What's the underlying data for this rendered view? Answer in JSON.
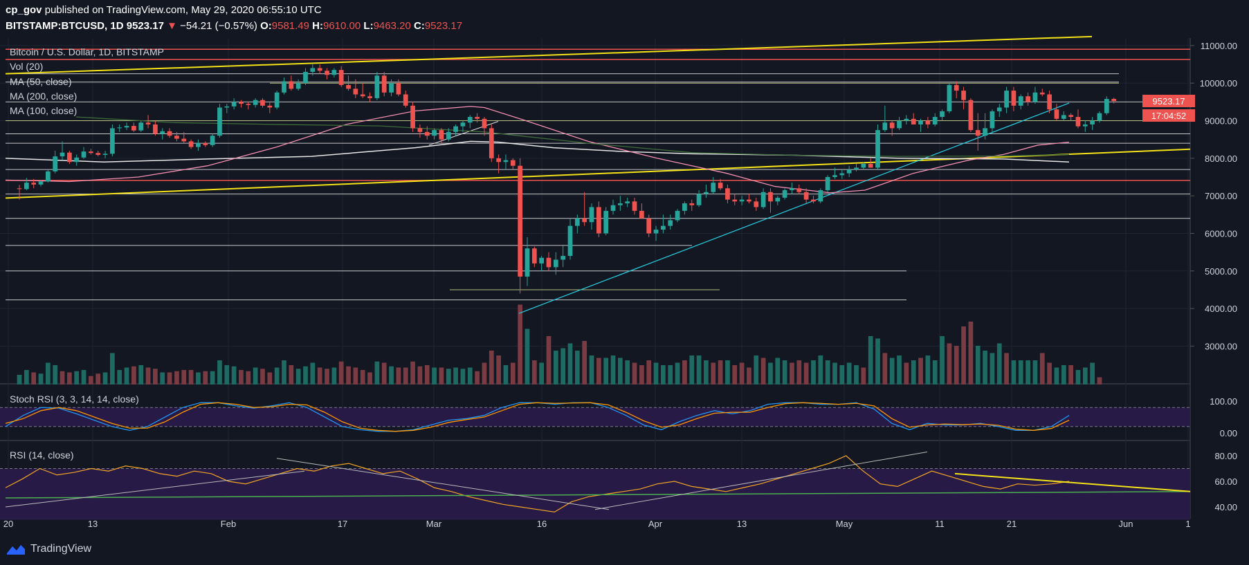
{
  "header": {
    "publisher": "cp_gov",
    "published_text": "published on TradingView.com, May 29, 2020 06:55:10 UTC",
    "symbol": "BITSTAMP:BTCUSD, 1D",
    "last": "9523.17",
    "change_arrow": "▼",
    "change": "−54.21 (−0.57%)",
    "o_label": "O:",
    "o": "9581.49",
    "h_label": "H:",
    "h": "9610.00",
    "l_label": "L:",
    "l": "9463.20",
    "c_label": "C:",
    "c": "9523.17"
  },
  "overlays": {
    "title": "Bitcoin / U.S. Dollar, 1D, BITSTAMP",
    "vol": "Vol (20)",
    "ma50": "MA (50, close)",
    "ma200": "MA (200, close)",
    "ma100": "MA (100, close)",
    "stoch": "Stoch RSI (3, 3, 14, 14, close)",
    "rsi": "RSI (14, close)"
  },
  "price_tags": {
    "last": "9523.17",
    "countdown": "17:04:52"
  },
  "footer": {
    "brand": "TradingView"
  },
  "colors": {
    "up": "#26a69a",
    "down": "#ef5350",
    "yellow": "#f5e31a",
    "background": "#131722",
    "accent": "#2962ff"
  },
  "chart_data": {
    "type": "candlestick",
    "x_ticks": [
      "20",
      "13",
      "Feb",
      "17",
      "Mar",
      "16",
      "Apr",
      "13",
      "May",
      "11",
      "21",
      "Jun",
      "1"
    ],
    "price_axis": {
      "ticks": [
        "11000.00",
        "10000.00",
        "9000.00",
        "8000.00",
        "7000.00",
        "6000.00",
        "5000.00",
        "4000.00",
        "3000.00"
      ]
    },
    "stoch_axis": {
      "ticks": [
        "100.00",
        "0.00"
      ]
    },
    "rsi_axis": {
      "ticks": [
        "80.00",
        "60.00",
        "40.00"
      ]
    },
    "ohlc": [
      [
        7200,
        7290,
        6900,
        7180
      ],
      [
        7180,
        7480,
        7150,
        7350
      ],
      [
        7350,
        7450,
        7200,
        7300
      ],
      [
        7300,
        7420,
        7250,
        7380
      ],
      [
        7380,
        7700,
        7350,
        7650
      ],
      [
        7650,
        8200,
        7600,
        8050
      ],
      [
        8050,
        8450,
        7950,
        8150
      ],
      [
        8150,
        8200,
        7850,
        7900
      ],
      [
        7900,
        8100,
        7800,
        8020
      ],
      [
        8020,
        8300,
        7980,
        8180
      ],
      [
        8180,
        8250,
        8100,
        8140
      ],
      [
        8140,
        8200,
        8050,
        8090
      ],
      [
        8090,
        8200,
        8000,
        8120
      ],
      [
        8120,
        8900,
        8050,
        8800
      ],
      [
        8800,
        8900,
        8700,
        8820
      ],
      [
        8820,
        8950,
        8750,
        8860
      ],
      [
        8860,
        8950,
        8700,
        8740
      ],
      [
        8740,
        9000,
        8700,
        8950
      ],
      [
        8950,
        9150,
        8800,
        8900
      ],
      [
        8900,
        9000,
        8600,
        8650
      ],
      [
        8650,
        8800,
        8500,
        8720
      ],
      [
        8720,
        8800,
        8550,
        8600
      ],
      [
        8600,
        8700,
        8450,
        8520
      ],
      [
        8520,
        8700,
        8400,
        8450
      ],
      [
        8450,
        8500,
        8250,
        8300
      ],
      [
        8300,
        8500,
        8200,
        8400
      ],
      [
        8400,
        8450,
        8300,
        8350
      ],
      [
        8350,
        8650,
        8300,
        8600
      ],
      [
        8600,
        9450,
        8550,
        9350
      ],
      [
        9350,
        9450,
        9200,
        9380
      ],
      [
        9380,
        9600,
        9300,
        9500
      ],
      [
        9500,
        9550,
        9350,
        9450
      ],
      [
        9450,
        9500,
        9300,
        9420
      ],
      [
        9420,
        9600,
        9350,
        9550
      ],
      [
        9550,
        9600,
        9350,
        9400
      ],
      [
        9400,
        9480,
        9200,
        9350
      ],
      [
        9350,
        9800,
        9300,
        9750
      ],
      [
        9750,
        10150,
        9700,
        10050
      ],
      [
        10050,
        10200,
        9800,
        9850
      ],
      [
        9850,
        10100,
        9800,
        10000
      ],
      [
        10000,
        10400,
        9950,
        10300
      ],
      [
        10300,
        10500,
        10200,
        10400
      ],
      [
        10400,
        10500,
        10250,
        10330
      ],
      [
        10330,
        10400,
        10100,
        10220
      ],
      [
        10220,
        10400,
        10150,
        10350
      ],
      [
        10350,
        10450,
        9900,
        9950
      ],
      [
        9950,
        10200,
        9800,
        9850
      ],
      [
        9850,
        10100,
        9600,
        9700
      ],
      [
        9700,
        10000,
        9600,
        9650
      ],
      [
        9650,
        9750,
        9500,
        9600
      ],
      [
        9600,
        10300,
        9550,
        10200
      ],
      [
        10200,
        10300,
        9650,
        9750
      ],
      [
        9750,
        10100,
        9650,
        10000
      ],
      [
        10000,
        10100,
        9650,
        9700
      ],
      [
        9700,
        9800,
        9350,
        9400
      ],
      [
        9400,
        9500,
        8700,
        8800
      ],
      [
        8800,
        8900,
        8550,
        8700
      ],
      [
        8700,
        8850,
        8500,
        8600
      ],
      [
        8600,
        8800,
        8500,
        8750
      ],
      [
        8750,
        8800,
        8400,
        8500
      ],
      [
        8500,
        8800,
        8450,
        8700
      ],
      [
        8700,
        8900,
        8600,
        8850
      ],
      [
        8850,
        9000,
        8700,
        8950
      ],
      [
        8950,
        9150,
        8800,
        9100
      ],
      [
        9100,
        9200,
        8950,
        9050
      ],
      [
        9050,
        9100,
        8600,
        8800
      ],
      [
        8800,
        8900,
        7900,
        8000
      ],
      [
        8000,
        8100,
        7600,
        7900
      ],
      [
        7900,
        8100,
        7700,
        7950
      ],
      [
        7950,
        8000,
        7700,
        7800
      ],
      [
        7800,
        8000,
        4400,
        4850
      ],
      [
        4850,
        5900,
        4600,
        5600
      ],
      [
        5600,
        5650,
        5100,
        5200
      ],
      [
        5200,
        5400,
        5000,
        5350
      ],
      [
        5350,
        5500,
        5000,
        5100
      ],
      [
        5100,
        5500,
        4900,
        5300
      ],
      [
        5300,
        5700,
        5100,
        5400
      ],
      [
        5400,
        6400,
        5300,
        6200
      ],
      [
        6200,
        6500,
        6000,
        6400
      ],
      [
        6400,
        7100,
        6200,
        6300
      ],
      [
        6300,
        6800,
        6100,
        6700
      ],
      [
        6700,
        6850,
        5900,
        6000
      ],
      [
        6000,
        6700,
        5950,
        6600
      ],
      [
        6600,
        6900,
        6500,
        6750
      ],
      [
        6750,
        7000,
        6600,
        6800
      ],
      [
        6800,
        6950,
        6700,
        6850
      ],
      [
        6850,
        6950,
        6500,
        6600
      ],
      [
        6600,
        6800,
        6400,
        6400
      ],
      [
        6400,
        6500,
        5900,
        6000
      ],
      [
        6000,
        6200,
        5800,
        6100
      ],
      [
        6100,
        6500,
        6000,
        6200
      ],
      [
        6200,
        6500,
        6100,
        6350
      ],
      [
        6350,
        6650,
        6300,
        6600
      ],
      [
        6600,
        6850,
        6500,
        6800
      ],
      [
        6800,
        6900,
        6600,
        6750
      ],
      [
        6750,
        7150,
        6700,
        7050
      ],
      [
        7050,
        7300,
        6950,
        7100
      ],
      [
        7100,
        7500,
        7050,
        7350
      ],
      [
        7350,
        7450,
        7150,
        7200
      ],
      [
        7200,
        7300,
        6800,
        6900
      ],
      [
        6900,
        7050,
        6750,
        6850
      ],
      [
        6850,
        7000,
        6750,
        6900
      ],
      [
        6900,
        7050,
        6800,
        6850
      ],
      [
        6850,
        6950,
        6600,
        6700
      ],
      [
        6700,
        7200,
        6650,
        7100
      ],
      [
        7100,
        7200,
        6550,
        6850
      ],
      [
        6850,
        7000,
        6750,
        6950
      ],
      [
        6950,
        7200,
        6900,
        7150
      ],
      [
        7150,
        7350,
        7050,
        7200
      ],
      [
        7200,
        7300,
        7050,
        7100
      ],
      [
        7100,
        7200,
        6800,
        6900
      ],
      [
        6900,
        7000,
        6800,
        6850
      ],
      [
        6850,
        7200,
        6800,
        7150
      ],
      [
        7150,
        7550,
        7100,
        7500
      ],
      [
        7500,
        7750,
        7450,
        7550
      ],
      [
        7550,
        7700,
        7450,
        7600
      ],
      [
        7600,
        7800,
        7500,
        7700
      ],
      [
        7700,
        7850,
        7650,
        7750
      ],
      [
        7750,
        7900,
        7700,
        7850
      ],
      [
        7850,
        8000,
        7750,
        7750
      ],
      [
        7750,
        8900,
        7700,
        8750
      ],
      [
        8750,
        9400,
        8700,
        8950
      ],
      [
        8950,
        9000,
        8600,
        8800
      ],
      [
        8800,
        9100,
        8750,
        9000
      ],
      [
        9000,
        9150,
        8900,
        9050
      ],
      [
        9050,
        9200,
        8900,
        8900
      ],
      [
        8900,
        9050,
        8700,
        9000
      ],
      [
        9000,
        9100,
        8800,
        8900
      ],
      [
        8900,
        9200,
        8850,
        9100
      ],
      [
        9100,
        9300,
        9000,
        9250
      ],
      [
        9250,
        10000,
        9200,
        9950
      ],
      [
        9950,
        10050,
        9600,
        9800
      ],
      [
        9800,
        9900,
        9300,
        9550
      ],
      [
        9550,
        9600,
        8700,
        8750
      ],
      [
        8750,
        9200,
        8200,
        8600
      ],
      [
        8600,
        9200,
        8500,
        8800
      ],
      [
        8800,
        9300,
        8650,
        9250
      ],
      [
        9250,
        9450,
        9100,
        9350
      ],
      [
        9350,
        9900,
        9200,
        9800
      ],
      [
        9800,
        9900,
        9250,
        9400
      ],
      [
        9400,
        9700,
        9300,
        9650
      ],
      [
        9650,
        9750,
        9400,
        9500
      ],
      [
        9500,
        9900,
        9450,
        9750
      ],
      [
        9750,
        9850,
        9650,
        9700
      ],
      [
        9700,
        9800,
        9200,
        9300
      ],
      [
        9300,
        9450,
        9000,
        9050
      ],
      [
        9050,
        9250,
        9000,
        9150
      ],
      [
        9150,
        9200,
        9000,
        9100
      ],
      [
        9100,
        9300,
        8800,
        8850
      ],
      [
        8850,
        9000,
        8700,
        8900
      ],
      [
        8900,
        9100,
        8750,
        9000
      ],
      [
        9000,
        9250,
        8950,
        9200
      ],
      [
        9200,
        9650,
        9150,
        9580
      ],
      [
        9580,
        9610,
        9460,
        9523
      ]
    ],
    "volume": [
      [
        0.4,
        "u"
      ],
      [
        0.6,
        "u"
      ],
      [
        0.5,
        "d"
      ],
      [
        0.45,
        "u"
      ],
      [
        0.9,
        "u"
      ],
      [
        0.8,
        "u"
      ],
      [
        0.55,
        "d"
      ],
      [
        0.5,
        "d"
      ],
      [
        0.55,
        "u"
      ],
      [
        0.6,
        "u"
      ],
      [
        0.35,
        "d"
      ],
      [
        0.45,
        "d"
      ],
      [
        0.5,
        "u"
      ],
      [
        1.3,
        "u"
      ],
      [
        0.6,
        "u"
      ],
      [
        0.7,
        "u"
      ],
      [
        0.75,
        "d"
      ],
      [
        0.8,
        "u"
      ],
      [
        0.7,
        "d"
      ],
      [
        0.65,
        "d"
      ],
      [
        0.5,
        "u"
      ],
      [
        0.5,
        "d"
      ],
      [
        0.55,
        "d"
      ],
      [
        0.6,
        "d"
      ],
      [
        0.6,
        "d"
      ],
      [
        0.5,
        "u"
      ],
      [
        0.55,
        "d"
      ],
      [
        0.55,
        "u"
      ],
      [
        1.0,
        "u"
      ],
      [
        0.8,
        "u"
      ],
      [
        0.75,
        "u"
      ],
      [
        0.6,
        "d"
      ],
      [
        0.55,
        "d"
      ],
      [
        0.7,
        "u"
      ],
      [
        0.65,
        "d"
      ],
      [
        0.5,
        "d"
      ],
      [
        0.7,
        "u"
      ],
      [
        1.0,
        "u"
      ],
      [
        0.8,
        "d"
      ],
      [
        0.65,
        "u"
      ],
      [
        0.75,
        "u"
      ],
      [
        0.9,
        "u"
      ],
      [
        0.7,
        "d"
      ],
      [
        0.65,
        "d"
      ],
      [
        0.7,
        "u"
      ],
      [
        0.95,
        "d"
      ],
      [
        0.75,
        "d"
      ],
      [
        0.7,
        "d"
      ],
      [
        0.6,
        "d"
      ],
      [
        0.5,
        "d"
      ],
      [
        0.95,
        "u"
      ],
      [
        0.9,
        "d"
      ],
      [
        0.75,
        "u"
      ],
      [
        0.7,
        "d"
      ],
      [
        0.7,
        "d"
      ],
      [
        0.95,
        "d"
      ],
      [
        0.75,
        "d"
      ],
      [
        0.8,
        "d"
      ],
      [
        0.7,
        "u"
      ],
      [
        0.7,
        "d"
      ],
      [
        0.65,
        "u"
      ],
      [
        0.7,
        "u"
      ],
      [
        0.65,
        "u"
      ],
      [
        0.7,
        "u"
      ],
      [
        0.55,
        "d"
      ],
      [
        0.9,
        "d"
      ],
      [
        1.4,
        "d"
      ],
      [
        1.2,
        "d"
      ],
      [
        0.8,
        "u"
      ],
      [
        0.9,
        "d"
      ],
      [
        3.3,
        "d"
      ],
      [
        2.3,
        "u"
      ],
      [
        1.0,
        "d"
      ],
      [
        0.9,
        "u"
      ],
      [
        2.0,
        "d"
      ],
      [
        1.4,
        "u"
      ],
      [
        1.5,
        "u"
      ],
      [
        1.7,
        "u"
      ],
      [
        1.4,
        "u"
      ],
      [
        1.8,
        "d"
      ],
      [
        1.2,
        "u"
      ],
      [
        1.1,
        "d"
      ],
      [
        1.1,
        "u"
      ],
      [
        1.2,
        "u"
      ],
      [
        1.1,
        "u"
      ],
      [
        1.0,
        "u"
      ],
      [
        0.9,
        "d"
      ],
      [
        0.8,
        "d"
      ],
      [
        1.0,
        "d"
      ],
      [
        0.9,
        "u"
      ],
      [
        0.8,
        "u"
      ],
      [
        0.8,
        "u"
      ],
      [
        0.9,
        "u"
      ],
      [
        1.0,
        "d"
      ],
      [
        1.2,
        "u"
      ],
      [
        1.2,
        "u"
      ],
      [
        1.0,
        "u"
      ],
      [
        0.9,
        "d"
      ],
      [
        1.0,
        "d"
      ],
      [
        1.0,
        "u"
      ],
      [
        0.8,
        "d"
      ],
      [
        0.9,
        "d"
      ],
      [
        0.7,
        "d"
      ],
      [
        1.2,
        "u"
      ],
      [
        1.1,
        "d"
      ],
      [
        0.9,
        "u"
      ],
      [
        1.1,
        "u"
      ],
      [
        1.0,
        "u"
      ],
      [
        0.9,
        "d"
      ],
      [
        1.0,
        "d"
      ],
      [
        0.9,
        "d"
      ],
      [
        1.0,
        "u"
      ],
      [
        1.2,
        "u"
      ],
      [
        1.0,
        "u"
      ],
      [
        0.9,
        "u"
      ],
      [
        0.8,
        "u"
      ],
      [
        0.9,
        "u"
      ],
      [
        0.8,
        "u"
      ],
      [
        0.7,
        "d"
      ],
      [
        2.0,
        "u"
      ],
      [
        1.9,
        "u"
      ],
      [
        1.3,
        "d"
      ],
      [
        1.1,
        "u"
      ],
      [
        1.2,
        "u"
      ],
      [
        0.9,
        "d"
      ],
      [
        1.0,
        "u"
      ],
      [
        1.1,
        "d"
      ],
      [
        1.2,
        "u"
      ],
      [
        1.0,
        "u"
      ],
      [
        2.0,
        "u"
      ],
      [
        1.7,
        "d"
      ],
      [
        1.6,
        "d"
      ],
      [
        2.4,
        "d"
      ],
      [
        2.6,
        "d"
      ],
      [
        1.6,
        "u"
      ],
      [
        1.4,
        "u"
      ],
      [
        1.3,
        "u"
      ],
      [
        1.7,
        "u"
      ],
      [
        1.3,
        "d"
      ],
      [
        1.0,
        "u"
      ],
      [
        1.0,
        "u"
      ],
      [
        1.0,
        "u"
      ],
      [
        1.0,
        "u"
      ],
      [
        1.3,
        "d"
      ],
      [
        0.9,
        "d"
      ],
      [
        0.7,
        "u"
      ],
      [
        0.8,
        "u"
      ],
      [
        0.8,
        "d"
      ],
      [
        0.6,
        "u"
      ],
      [
        0.7,
        "u"
      ],
      [
        0.9,
        "u"
      ],
      [
        0.3,
        "d"
      ]
    ]
  }
}
